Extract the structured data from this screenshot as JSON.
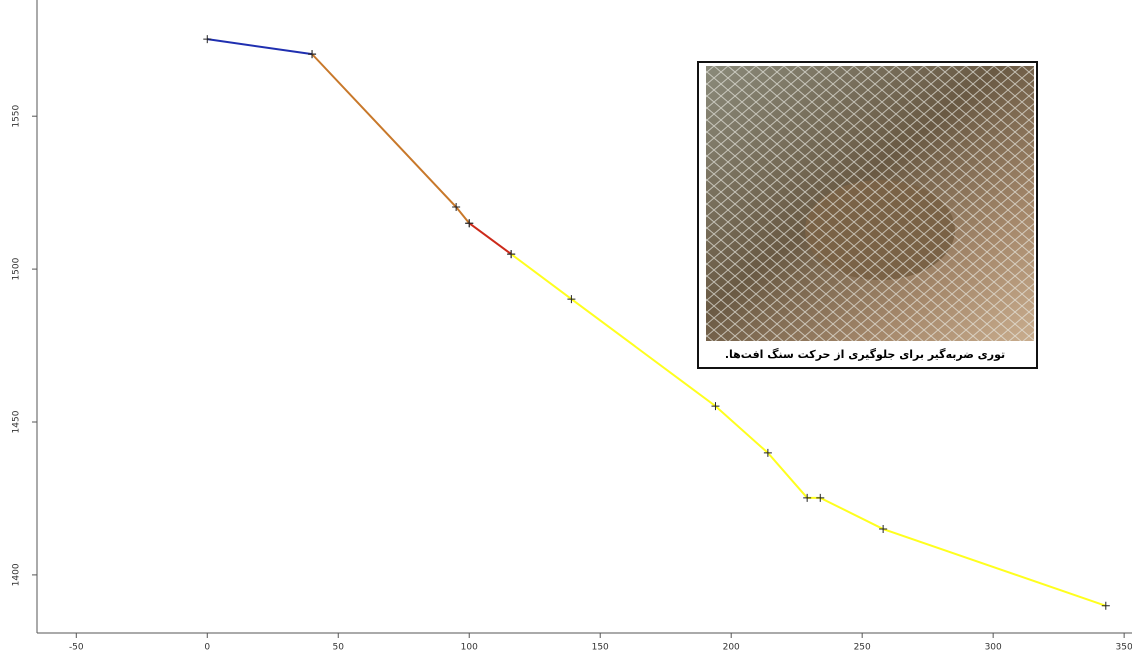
{
  "chart_data": {
    "type": "line",
    "xlim": [
      -65,
      353
    ],
    "ylim": [
      1381,
      1588
    ],
    "xticks": [
      -50,
      0,
      50,
      100,
      150,
      200,
      250,
      300,
      350
    ],
    "yticks": [
      1400,
      1450,
      1500,
      1550
    ],
    "annotation": "توری ضربه‌گیر برای جلوگیری از حرکت سنگ افت‌ها.",
    "series": [
      {
        "color": "#1f2fb0",
        "x": [
          0,
          40
        ],
        "values": [
          1575.2,
          1570.3
        ]
      },
      {
        "color": "#c8782a",
        "x": [
          40,
          95,
          100
        ],
        "values": [
          1570.3,
          1520.3,
          1515
        ]
      },
      {
        "color": "#cc2a1a",
        "x": [
          100,
          116
        ],
        "values": [
          1515,
          1504.9
        ]
      },
      {
        "color": "#ffff1e",
        "x": [
          116,
          139,
          194,
          214,
          229,
          234,
          258,
          343
        ],
        "values": [
          1504.9,
          1490.2,
          1455.2,
          1439.9,
          1425.2,
          1425.2,
          1415,
          1389.9
        ]
      }
    ]
  }
}
